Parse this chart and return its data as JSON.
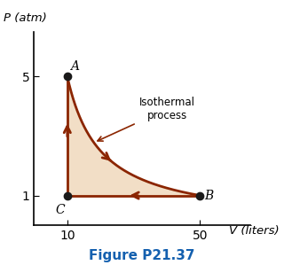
{
  "point_A": [
    10,
    5
  ],
  "point_B": [
    50,
    1
  ],
  "point_C": [
    10,
    1
  ],
  "PV_const": 50,
  "xlim": [
    0,
    65
  ],
  "ylim": [
    0,
    6.5
  ],
  "xticks": [
    10,
    50
  ],
  "yticks": [
    1,
    5
  ],
  "xlabel": "V (liters)",
  "ylabel": "P (atm)",
  "title": "Figure P21.37",
  "title_color": "#1460AF",
  "arrow_color": "#8B2500",
  "fill_color": "#F0D9BC",
  "fill_alpha": 0.85,
  "label_A": "A",
  "label_B": "B",
  "label_C": "C",
  "isothermal_label": "Isothermal\nprocess",
  "dot_color": "#1A1A1A",
  "dot_size": 6,
  "arrow_lw": 2.0,
  "bg_color": "#FFFFFF"
}
